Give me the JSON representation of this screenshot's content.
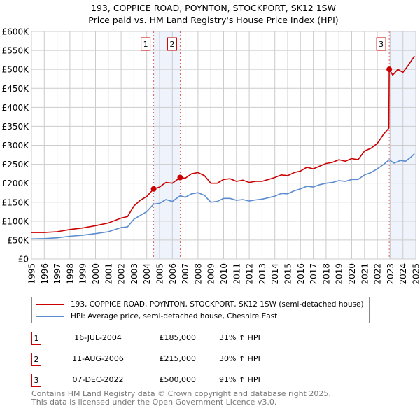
{
  "chart_data": {
    "type": "line",
    "title": "193, COPPICE ROAD, POYNTON, STOCKPORT, SK12 1SW",
    "subtitle": "Price paid vs. HM Land Registry's House Price Index (HPI)",
    "xlim": [
      1995,
      2025
    ],
    "ylim": [
      0,
      600000
    ],
    "x_ticks": [
      "1995",
      "1996",
      "1997",
      "1998",
      "1999",
      "2000",
      "2001",
      "2002",
      "2003",
      "2004",
      "2005",
      "2006",
      "2007",
      "2008",
      "2009",
      "2010",
      "2011",
      "2012",
      "2013",
      "2014",
      "2015",
      "2016",
      "2017",
      "2018",
      "2019",
      "2020",
      "2021",
      "2022",
      "2023",
      "2024",
      "2025"
    ],
    "y_ticks": [
      {
        "value": 0,
        "label": "£0"
      },
      {
        "value": 50000,
        "label": "£50K"
      },
      {
        "value": 100000,
        "label": "£100K"
      },
      {
        "value": 150000,
        "label": "£150K"
      },
      {
        "value": 200000,
        "label": "£200K"
      },
      {
        "value": 250000,
        "label": "£250K"
      },
      {
        "value": 300000,
        "label": "£300K"
      },
      {
        "value": 350000,
        "label": "£350K"
      },
      {
        "value": 400000,
        "label": "£400K"
      },
      {
        "value": 450000,
        "label": "£450K"
      },
      {
        "value": 500000,
        "label": "£500K"
      },
      {
        "value": 550000,
        "label": "£550K"
      },
      {
        "value": 600000,
        "label": "£600K"
      }
    ],
    "grid": true,
    "series": [
      {
        "name": "193, COPPICE ROAD, POYNTON, STOCKPORT, SK12 1SW (semi-detached house)",
        "color": "#cc0000",
        "x": [
          1995,
          1996,
          1997,
          1998,
          1999,
          2000,
          2001,
          2002,
          2002.5,
          2003,
          2003.5,
          2004,
          2004.54,
          2005,
          2005.5,
          2006,
          2006.61,
          2007,
          2007.5,
          2008,
          2008.5,
          2009,
          2009.5,
          2010,
          2010.5,
          2011,
          2011.5,
          2012,
          2012.5,
          2013,
          2013.5,
          2014,
          2014.5,
          2015,
          2015.5,
          2016,
          2016.5,
          2017,
          2017.5,
          2018,
          2018.5,
          2019,
          2019.5,
          2020,
          2020.5,
          2021,
          2021.5,
          2022,
          2022.5,
          2022.9,
          2022.93,
          2023.2,
          2023.6,
          2024,
          2024.4,
          2024.9
        ],
        "y": [
          70000,
          70000,
          72000,
          78000,
          82000,
          88000,
          95000,
          108000,
          112000,
          140000,
          155000,
          165000,
          185000,
          190000,
          202000,
          200000,
          215000,
          213000,
          225000,
          228000,
          220000,
          200000,
          200000,
          210000,
          212000,
          205000,
          208000,
          202000,
          205000,
          205000,
          210000,
          215000,
          222000,
          220000,
          228000,
          232000,
          242000,
          238000,
          245000,
          252000,
          255000,
          262000,
          258000,
          265000,
          262000,
          285000,
          292000,
          305000,
          330000,
          345000,
          500000,
          485000,
          500000,
          492000,
          510000,
          535000
        ]
      },
      {
        "name": "HPI: Average price, semi-detached house, Cheshire East",
        "color": "#5b8ccf",
        "x": [
          1995,
          1996,
          1997,
          1998,
          1999,
          2000,
          2001,
          2002,
          2002.5,
          2003,
          2003.5,
          2004,
          2004.54,
          2005,
          2005.5,
          2006,
          2006.61,
          2007,
          2007.5,
          2008,
          2008.5,
          2009,
          2009.5,
          2010,
          2010.5,
          2011,
          2011.5,
          2012,
          2012.5,
          2013,
          2013.5,
          2014,
          2014.5,
          2015,
          2015.5,
          2016,
          2016.5,
          2017,
          2017.5,
          2018,
          2018.5,
          2019,
          2019.5,
          2020,
          2020.5,
          2021,
          2021.5,
          2022,
          2022.5,
          2022.93,
          2023.3,
          2023.8,
          2024.2,
          2024.6,
          2024.9
        ],
        "y": [
          53000,
          54000,
          56000,
          60000,
          63000,
          67000,
          72000,
          83000,
          85000,
          105000,
          115000,
          125000,
          145000,
          147000,
          157000,
          152000,
          167000,
          163000,
          172000,
          175000,
          168000,
          150000,
          152000,
          160000,
          160000,
          155000,
          157000,
          153000,
          156000,
          158000,
          162000,
          166000,
          173000,
          172000,
          180000,
          185000,
          192000,
          190000,
          196000,
          200000,
          202000,
          207000,
          205000,
          210000,
          210000,
          222000,
          228000,
          238000,
          250000,
          262000,
          253000,
          260000,
          258000,
          268000,
          278000
        ]
      }
    ],
    "sales": [
      {
        "label": "1",
        "x": 2004.54,
        "y": 185000,
        "date": "16-JUL-2004",
        "price": "£185,000",
        "hpi": "31% ↑ HPI"
      },
      {
        "label": "2",
        "x": 2006.61,
        "y": 215000,
        "date": "11-AUG-2006",
        "price": "£215,000",
        "hpi": "30% ↑ HPI"
      },
      {
        "label": "3",
        "x": 2022.93,
        "y": 500000,
        "date": "07-DEC-2022",
        "price": "£500,000",
        "hpi": "91% ↑ HPI"
      }
    ],
    "shaded_ranges": [
      [
        2004.54,
        2006.61
      ],
      [
        2022.93,
        2025
      ]
    ],
    "legend_position": "below"
  },
  "footer": [
    "Contains HM Land Registry data © Crown copyright and database right 2025.",
    "This data is licensed under the Open Government Licence v3.0."
  ]
}
